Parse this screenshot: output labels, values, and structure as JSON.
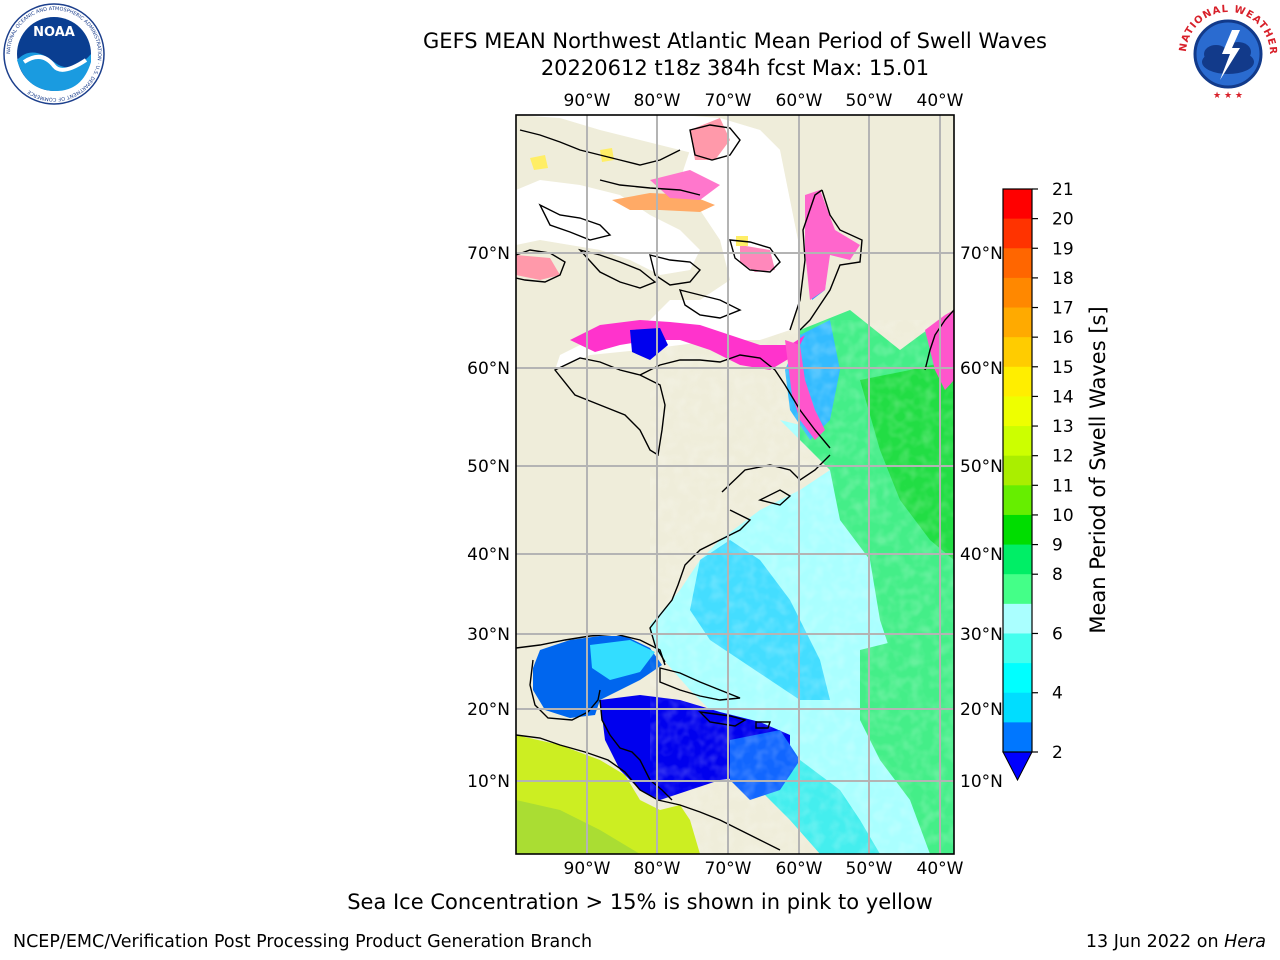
{
  "title_line1": "GEFS MEAN Northwest Atlantic Mean Period of Swell Waves",
  "title_line2": "20220612 t18z 384h fcst   Max: 15.01",
  "logos": {
    "noaa": {
      "name": "NOAA",
      "ring_text": "NATIONAL OCEANIC AND ATMOSPHERIC ADMINISTRATION · U.S. DEPARTMENT OF COMMERCE"
    },
    "nws": {
      "ring_text": "NATIONAL WEATHER SERVICE"
    }
  },
  "map": {
    "lon_labels": [
      "90°W",
      "80°W",
      "70°W",
      "60°W",
      "50°W",
      "40°W"
    ],
    "lat_labels": [
      "70°N",
      "60°N",
      "50°N",
      "40°N",
      "30°N",
      "20°N",
      "10°N"
    ],
    "colors": {
      "land": "#efedda",
      "ice_free_white": "#ffffff",
      "gridline": "#b4b4b4"
    }
  },
  "colorbar": {
    "label": "Mean Period of Swell Waves [s]",
    "ticks": [
      "21",
      "20",
      "19",
      "18",
      "17",
      "16",
      "15",
      "14",
      "13",
      "12",
      "11",
      "10",
      "9",
      "8",
      "6",
      "4",
      "2"
    ],
    "colors_top_to_bottom": [
      "#ff0000",
      "#ff3300",
      "#ff6600",
      "#ff8800",
      "#ffaa00",
      "#ffcc00",
      "#ffee00",
      "#eeff00",
      "#ccff00",
      "#aaee00",
      "#66ee00",
      "#00dd00",
      "#00ee66",
      "#44ff88",
      "#aaffff",
      "#44ffee",
      "#00ffff",
      "#00ddff",
      "#0077ff",
      "#0000ff"
    ]
  },
  "ice_note": "Sea Ice Concentration > 15% is shown in pink to yellow",
  "footer_left": "NCEP/EMC/Verification Post Processing Product Generation Branch",
  "footer_right_date": "13 Jun 2022 on",
  "footer_right_host": "Hera"
}
